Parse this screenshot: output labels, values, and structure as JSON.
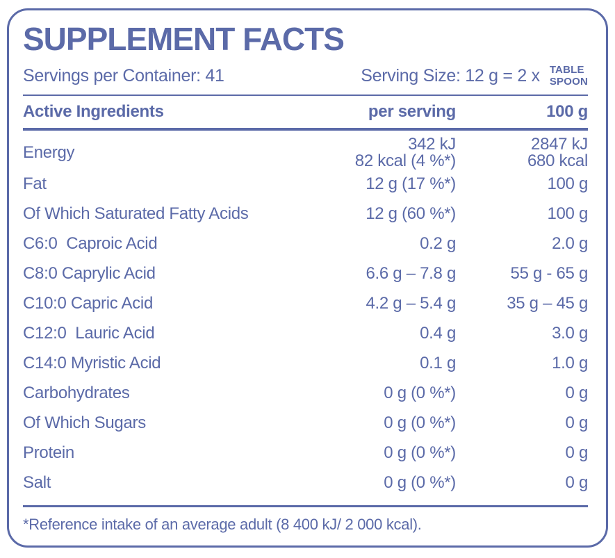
{
  "colors": {
    "ink": "#5b6aa8",
    "background": "#ffffff"
  },
  "header": {
    "title": "SUPPLEMENT FACTS"
  },
  "serving_info": {
    "servings_per_container": "Servings per Container: 41",
    "serving_size_prefix": "Serving Size: 12 g = 2 x",
    "spoon_unit": {
      "line1": "TABLE",
      "line2": "SPOON"
    }
  },
  "table": {
    "columns": {
      "ingredient": "Active Ingredients",
      "per_serving": "per serving",
      "per_100g": "100 g"
    },
    "energy": {
      "label": "Energy",
      "per_serving_line1": "342 kJ",
      "per_serving_line2": "82 kcal (4 %*)",
      "per_100g_line1": "2847 kJ",
      "per_100g_line2": "680 kcal"
    },
    "rows": [
      {
        "label": "Fat",
        "per_serving": "12 g (17 %*)",
        "per_100g": "100 g"
      },
      {
        "label": "Of Which Saturated Fatty Acids",
        "per_serving": "12 g (60 %*)",
        "per_100g": "100 g"
      },
      {
        "label": "C6:0  Caproic Acid",
        "per_serving": "0.2 g",
        "per_100g": "2.0 g"
      },
      {
        "label": "C8:0 Caprylic Acid",
        "per_serving": "6.6 g – 7.8 g",
        "per_100g": "55 g - 65 g"
      },
      {
        "label": "C10:0 Capric Acid",
        "per_serving": "4.2 g – 5.4 g",
        "per_100g": "35 g – 45 g"
      },
      {
        "label": "C12:0  Lauric Acid",
        "per_serving": "0.4 g",
        "per_100g": "3.0 g"
      },
      {
        "label": "C14:0 Myristic Acid",
        "per_serving": "0.1 g",
        "per_100g": "1.0 g"
      },
      {
        "label": "Carbohydrates",
        "per_serving": "0 g (0 %*)",
        "per_100g": "0 g"
      },
      {
        "label": "Of Which Sugars",
        "per_serving": "0 g (0 %*)",
        "per_100g": "0 g"
      },
      {
        "label": "Protein",
        "per_serving": "0 g (0 %*)",
        "per_100g": "0 g"
      },
      {
        "label": "Salt",
        "per_serving": "0 g (0 %*)",
        "per_100g": "0 g"
      }
    ]
  },
  "footer": {
    "note": "*Reference intake of an average adult (8 400 kJ/ 2 000 kcal)."
  }
}
